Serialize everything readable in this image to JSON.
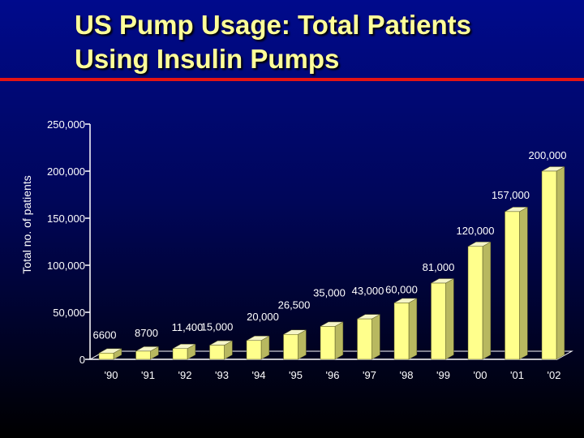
{
  "slide": {
    "title_line1": "US Pump Usage: Total Patients",
    "title_line2": "Using Insulin Pumps"
  },
  "colors": {
    "background_top": "#000a8c",
    "background_bottom": "#000000",
    "title": "#ffff99",
    "rule": "#e41414",
    "bar_front": "#ffff8c",
    "bar_side": "#b8b860",
    "bar_top": "#f5f5c8",
    "text": "#ffffff"
  },
  "chart_data": {
    "type": "bar",
    "title": "US Pump Usage: Total Patients Using Insulin Pumps",
    "ylabel": "Total no. of patients",
    "xlabel": "",
    "categories": [
      "'90",
      "'91",
      "'92",
      "'93",
      "'94",
      "'95",
      "'96",
      "'97",
      "'98",
      "'99",
      "'00",
      "'01",
      "'02"
    ],
    "values": [
      6600,
      8700,
      11400,
      15000,
      20000,
      26500,
      35000,
      43000,
      60000,
      81000,
      120000,
      157000,
      200000
    ],
    "data_labels": [
      "6600",
      "8700",
      "11,400",
      "15,000",
      "20,000",
      "26,500",
      "35,000",
      "43,000",
      "60,000",
      "81,000",
      "120,000",
      "157,000",
      "200,000"
    ],
    "ylim": [
      0,
      250000
    ],
    "yticks": [
      0,
      50000,
      100000,
      150000,
      200000,
      250000
    ],
    "ytick_labels": [
      "0",
      "50,000",
      "100,000",
      "150,000",
      "200,000",
      "250,000"
    ],
    "grid": false,
    "legend": "none",
    "style": "3d-bar"
  }
}
